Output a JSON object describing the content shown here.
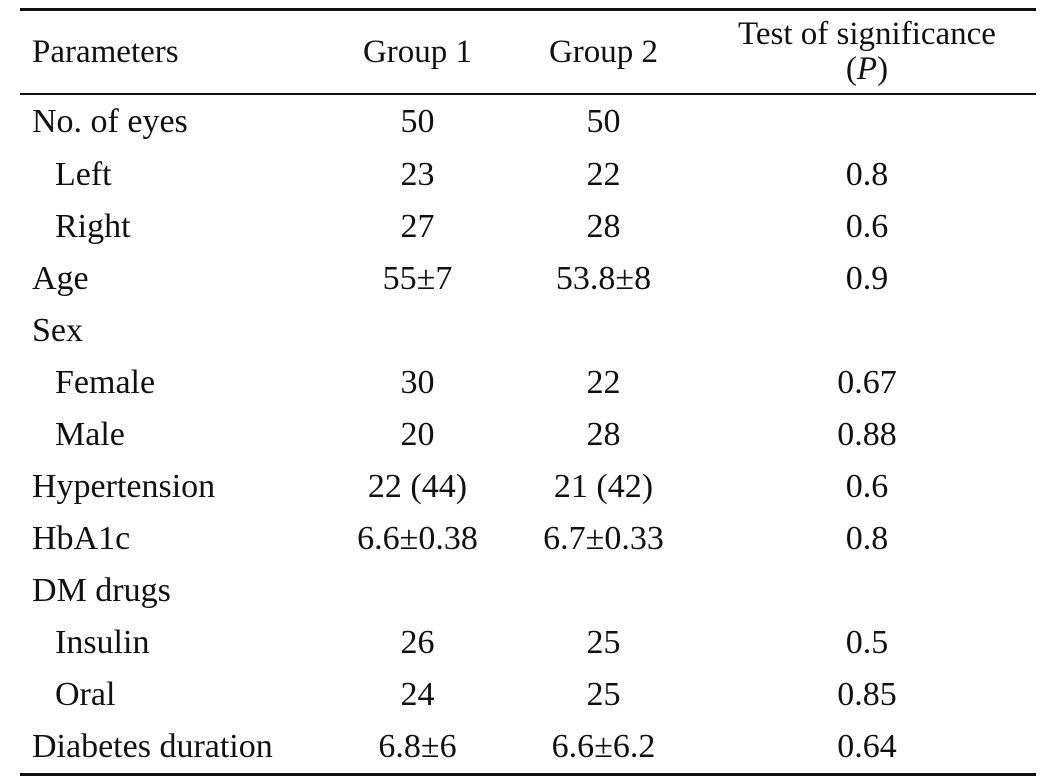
{
  "table": {
    "headers": {
      "parameters": "Parameters",
      "group1": "Group 1",
      "group2": "Group 2",
      "significance_line1": "Test of significance",
      "significance_open": "(",
      "significance_p": "P",
      "significance_close": ")"
    },
    "rows": [
      {
        "label": "No. of eyes",
        "group1": "50",
        "group2": "50",
        "p": "",
        "indent": false
      },
      {
        "label": "Left",
        "group1": "23",
        "group2": "22",
        "p": "0.8",
        "indent": true
      },
      {
        "label": "Right",
        "group1": "27",
        "group2": "28",
        "p": "0.6",
        "indent": true
      },
      {
        "label": "Age",
        "group1": "55±7",
        "group2": "53.8±8",
        "p": "0.9",
        "indent": false
      },
      {
        "label": "Sex",
        "group1": "",
        "group2": "",
        "p": "",
        "indent": false
      },
      {
        "label": "Female",
        "group1": "30",
        "group2": "22",
        "p": "0.67",
        "indent": true
      },
      {
        "label": "Male",
        "group1": "20",
        "group2": "28",
        "p": "0.88",
        "indent": true
      },
      {
        "label": "Hypertension",
        "group1": "22 (44)",
        "group2": "21 (42)",
        "p": "0.6",
        "indent": false
      },
      {
        "label": "HbA1c",
        "group1": "6.6±0.38",
        "group2": "6.7±0.33",
        "p": "0.8",
        "indent": false
      },
      {
        "label": "DM drugs",
        "group1": "",
        "group2": "",
        "p": "",
        "indent": false
      },
      {
        "label": "Insulin",
        "group1": "26",
        "group2": "25",
        "p": "0.5",
        "indent": true
      },
      {
        "label": "Oral",
        "group1": "24",
        "group2": "25",
        "p": "0.85",
        "indent": true
      },
      {
        "label": "Diabetes duration",
        "group1": "6.8±6",
        "group2": "6.6±6.2",
        "p": "0.64",
        "indent": false
      }
    ]
  }
}
